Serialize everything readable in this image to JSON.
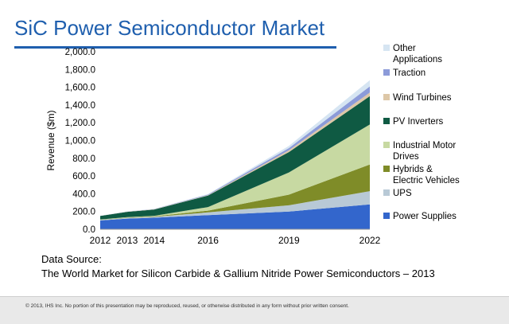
{
  "page": {
    "title": "SiC Power Semiconductor Market",
    "source_label": "Data Source:",
    "source_text": "The World Market for Silicon Carbide & Gallium Nitride Power Semiconductors – 2013",
    "footer": "© 2013, IHS Inc. No portion of this presentation may be reproduced, reused, or otherwise distributed in any form without prior written consent."
  },
  "chart_data": {
    "type": "area",
    "stacked": true,
    "ylabel": "Revenue ($m)",
    "xlabel": "",
    "x": [
      "2012",
      "2013",
      "2014",
      "2016",
      "2019",
      "2022"
    ],
    "x_numeric": [
      2012,
      2013,
      2014,
      2016,
      2019,
      2022
    ],
    "ylim": [
      0,
      2000
    ],
    "yticks": [
      0,
      200,
      400,
      600,
      800,
      1000,
      1200,
      1400,
      1600,
      1800,
      2000
    ],
    "ytick_labels": [
      "0.0",
      "200.0",
      "400.0",
      "600.0",
      "800.0",
      "1,000.0",
      "1,200.0",
      "1,400.0",
      "1,600.0",
      "1,800.0",
      "2,000.0"
    ],
    "legend_position": "right",
    "series": [
      {
        "name": "Power Supplies",
        "color": "#3366cc",
        "values": [
          100,
          120,
          130,
          160,
          200,
          280
        ]
      },
      {
        "name": "UPS",
        "color": "#b8c9d6",
        "values": [
          5,
          8,
          10,
          30,
          70,
          150
        ]
      },
      {
        "name": "Hybrids & Electric Vehicles",
        "color": "#7f8c28",
        "values": [
          2,
          3,
          5,
          20,
          120,
          300
        ]
      },
      {
        "name": "Industrial Motor Drives",
        "color": "#c7d9a2",
        "values": [
          3,
          5,
          7,
          40,
          250,
          450
        ]
      },
      {
        "name": "PV Inverters",
        "color": "#0f5a43",
        "values": [
          40,
          60,
          70,
          130,
          230,
          320
        ]
      },
      {
        "name": "Wind Turbines",
        "color": "#ddc7a7",
        "values": [
          1,
          2,
          3,
          5,
          20,
          40
        ]
      },
      {
        "name": "Traction",
        "color": "#8c9bd9",
        "values": [
          1,
          2,
          3,
          6,
          25,
          70
        ]
      },
      {
        "name": "Other Applications",
        "color": "#d6e5f2",
        "values": [
          1,
          2,
          3,
          6,
          25,
          70
        ]
      }
    ]
  }
}
